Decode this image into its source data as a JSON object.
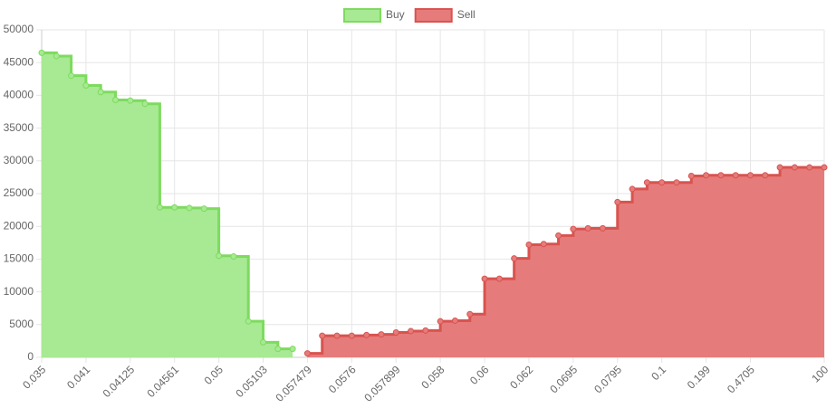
{
  "chart_data": {
    "type": "stepped-area",
    "categories": [
      "0.035",
      null,
      null,
      "0.041",
      null,
      null,
      "0.04125",
      null,
      null,
      "0.04561",
      null,
      null,
      "0.05",
      null,
      null,
      "0.05103",
      null,
      null,
      "0.057479",
      null,
      null,
      "0.0576",
      null,
      null,
      "0.057899",
      null,
      null,
      "0.058",
      null,
      null,
      "0.06",
      null,
      null,
      "0.062",
      null,
      null,
      "0.0695",
      null,
      null,
      "0.0795",
      null,
      null,
      "0.1",
      null,
      null,
      "0.199",
      null,
      null,
      "0.4705",
      null,
      null,
      null,
      null,
      "100"
    ],
    "series": [
      {
        "name": "Buy",
        "color": "#7ddb5e",
        "fill": "#a8e994",
        "values": [
          46500,
          46000,
          43000,
          41500,
          40500,
          39300,
          39200,
          38700,
          22900,
          22900,
          22800,
          22700,
          15500,
          15400,
          5500,
          2300,
          1300,
          1300,
          null,
          null,
          null,
          null,
          null,
          null,
          null,
          null,
          null,
          null,
          null,
          null,
          null,
          null,
          null,
          null,
          null,
          null,
          null,
          null,
          null,
          null,
          null,
          null,
          null,
          null,
          null,
          null,
          null,
          null,
          null,
          null,
          null,
          null,
          null,
          null
        ]
      },
      {
        "name": "Sell",
        "color": "#d9534f",
        "fill": "#e57c7b",
        "values": [
          null,
          null,
          null,
          null,
          null,
          null,
          null,
          null,
          null,
          null,
          null,
          null,
          null,
          null,
          null,
          null,
          null,
          null,
          600,
          3300,
          3300,
          3300,
          3400,
          3500,
          3800,
          4000,
          4100,
          5500,
          5600,
          6600,
          12000,
          12000,
          15100,
          17200,
          17300,
          18600,
          19600,
          19700,
          19700,
          23700,
          25700,
          26700,
          26700,
          26700,
          27700,
          27800,
          27800,
          27800,
          27800,
          27800,
          29000,
          29000,
          29000,
          29000
        ]
      }
    ],
    "ylim": [
      0,
      50000
    ],
    "yticks": [
      0,
      5000,
      10000,
      15000,
      20000,
      25000,
      30000,
      35000,
      40000,
      45000,
      50000
    ],
    "grid": true
  }
}
